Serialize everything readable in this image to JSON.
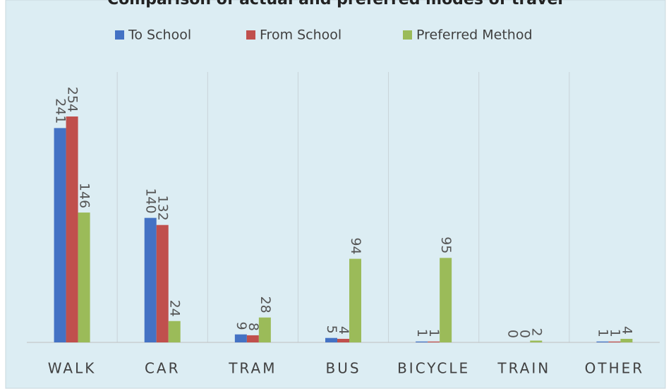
{
  "chart_data": {
    "type": "bar",
    "title": "Comparison of actual and preferred modes of travel",
    "categories": [
      "WALK",
      "CAR",
      "TRAM",
      "BUS",
      "BICYCLE",
      "TRAIN",
      "OTHER"
    ],
    "series": [
      {
        "name": "To School",
        "color": "#4472c4",
        "values": [
          241,
          140,
          9,
          5,
          1,
          0,
          1
        ]
      },
      {
        "name": "From School",
        "color": "#c0504d",
        "values": [
          254,
          132,
          8,
          4,
          1,
          0,
          1
        ]
      },
      {
        "name": "Preferred Method",
        "color": "#9bbb59",
        "values": [
          146,
          24,
          28,
          94,
          95,
          2,
          4
        ]
      }
    ],
    "legend": "top"
  }
}
